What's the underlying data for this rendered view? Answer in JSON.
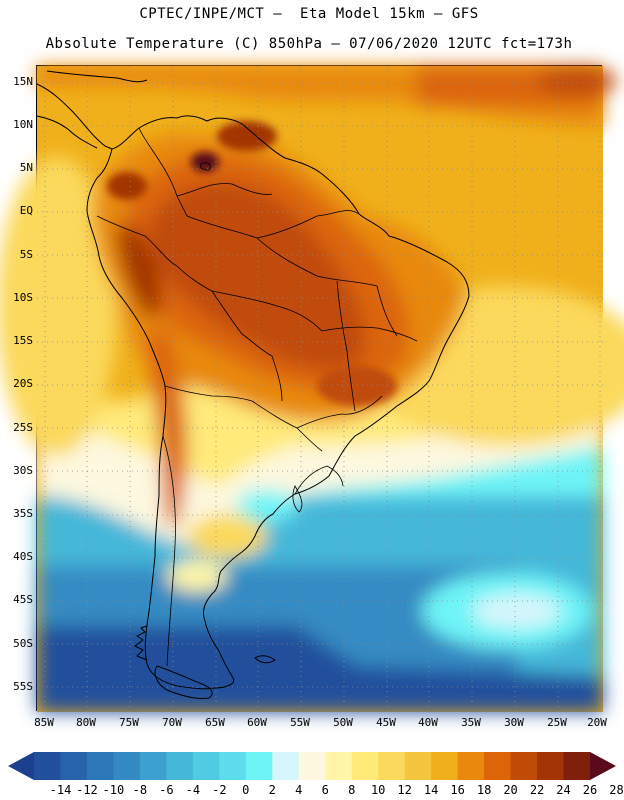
{
  "header": {
    "line1": "CPTEC/INPE/MCT –  Eta Model 15km – GFS",
    "line2": "Absolute Temperature (C) 850hPa – 07/06/2020 12UTC fct=173h"
  },
  "map": {
    "lat_labels": [
      "15N",
      "10N",
      "5N",
      "EQ",
      "5S",
      "10S",
      "15S",
      "20S",
      "25S",
      "30S",
      "35S",
      "40S",
      "45S",
      "50S",
      "55S"
    ],
    "lon_labels": [
      "85W",
      "80W",
      "75W",
      "70W",
      "65W",
      "60W",
      "55W",
      "50W",
      "45W",
      "40W",
      "35W",
      "30W",
      "25W",
      "20W"
    ],
    "land_outline_color": "#000000",
    "grid_style": "dotted"
  },
  "colorbar": {
    "tick_labels": [
      "-14",
      "-12",
      "-10",
      "-8",
      "-6",
      "-4",
      "-2",
      "0",
      "2",
      "4",
      "6",
      "8",
      "10",
      "12",
      "14",
      "16",
      "18",
      "20",
      "22",
      "24",
      "26",
      "28"
    ],
    "colors": [
      "#1c3f8e",
      "#22509c",
      "#2763aa",
      "#2d77b8",
      "#348bc3",
      "#3ca1cf",
      "#45b7d9",
      "#4fcbe3",
      "#5ddded",
      "#6ef4f7",
      "#d5f6fb",
      "#fdf8df",
      "#fff6a8",
      "#ffea7a",
      "#fbd95c",
      "#f4c63f",
      "#f0b01b",
      "#e8890d",
      "#dc6509",
      "#c04b07",
      "#a33406",
      "#7f1f0c",
      "#5b0a1c"
    ]
  }
}
